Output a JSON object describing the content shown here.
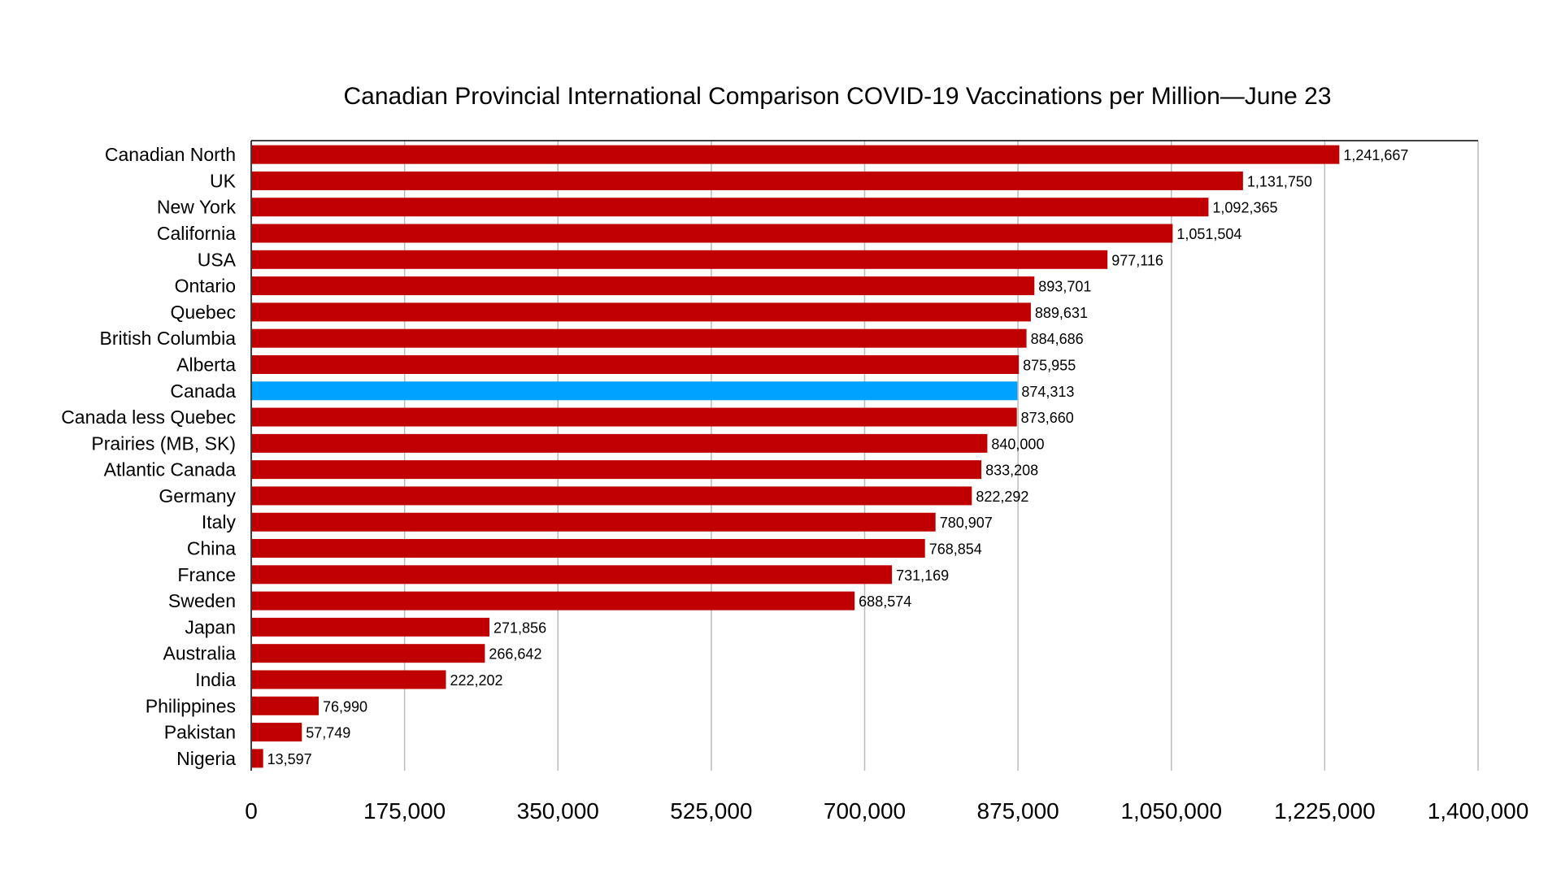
{
  "chart_data": {
    "type": "bar",
    "orientation": "horizontal",
    "title": "Canadian Provincial International Comparison COVID-19 Vaccinations per Million—June 23",
    "xlabel": "",
    "ylabel": "",
    "xlim": [
      0,
      1400000
    ],
    "x_ticks": [
      0,
      175000,
      350000,
      525000,
      700000,
      875000,
      1050000,
      1225000,
      1400000
    ],
    "x_tick_labels": [
      "0",
      "175,000",
      "350,000",
      "525,000",
      "700,000",
      "875,000",
      "1,050,000",
      "1,225,000",
      "1,400,000"
    ],
    "grid": "vertical",
    "legend": "none",
    "categories": [
      "Canadian North",
      "UK",
      "New York",
      "California",
      "USA",
      "Ontario",
      "Quebec",
      "British Columbia",
      "Alberta",
      "Canada",
      "Canada less Quebec",
      "Prairies (MB, SK)",
      "Atlantic Canada",
      "Germany",
      "Italy",
      "China",
      "France",
      "Sweden",
      "Japan",
      "Australia",
      "India",
      "Philippines",
      "Pakistan",
      "Nigeria"
    ],
    "values": [
      1241667,
      1131750,
      1092365,
      1051504,
      977116,
      893701,
      889631,
      884686,
      875955,
      874313,
      873660,
      840000,
      833208,
      822292,
      780907,
      768854,
      731169,
      688574,
      271856,
      266642,
      222202,
      76990,
      57749,
      13597
    ],
    "value_labels": [
      "1,241,667",
      "1,131,750",
      "1,092,365",
      "1,051,504",
      "977,116",
      "893,701",
      "889,631",
      "884,686",
      "875,955",
      "874,313",
      "873,660",
      "840,000",
      "833,208",
      "822,292",
      "780,907",
      "768,854",
      "731,169",
      "688,574",
      "271,856",
      "266,642",
      "222,202",
      "76,990",
      "57,749",
      "13,597"
    ],
    "highlight_category": "Canada",
    "colors": {
      "bar": "#C00000",
      "highlight": "#00A2FF",
      "grid": "#BBBBBB",
      "axis": "#000000"
    }
  }
}
